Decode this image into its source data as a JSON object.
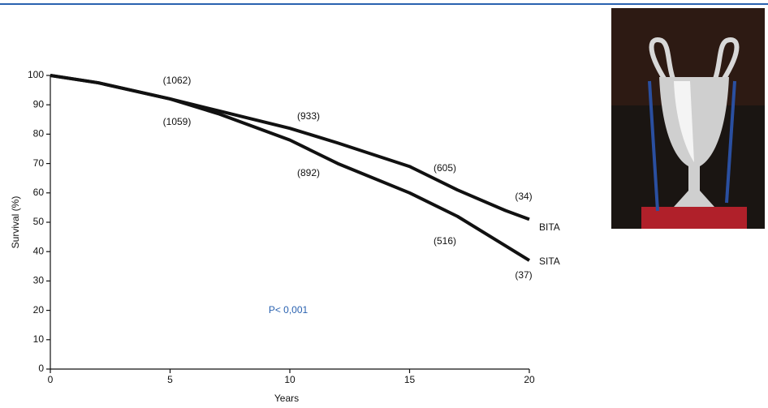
{
  "chart_data": {
    "type": "line",
    "x_label": "Years",
    "y_label": "Survival (%)",
    "x": [
      0,
      2,
      5,
      7,
      10,
      12,
      15,
      17,
      19,
      20
    ],
    "series": [
      {
        "name": "BITA",
        "color": "#111111",
        "values": [
          100,
          97.5,
          92,
          88,
          82,
          77,
          69,
          61,
          54,
          51
        ]
      },
      {
        "name": "SITA",
        "color": "#111111",
        "values": [
          100,
          97.5,
          92,
          87,
          78,
          70,
          60,
          52,
          42,
          37
        ]
      }
    ],
    "xlim": [
      0,
      20
    ],
    "xticks": [
      0,
      5,
      10,
      15,
      20
    ],
    "ylim": [
      0,
      100
    ],
    "yticks": [
      0,
      10,
      20,
      30,
      40,
      50,
      60,
      70,
      80,
      90,
      100
    ],
    "annotations": [
      "(1062)",
      "(1059)",
      "(933)",
      "(892)",
      "(605)",
      "(516)",
      "(34)",
      "(37)",
      "P< 0,001"
    ]
  }
}
